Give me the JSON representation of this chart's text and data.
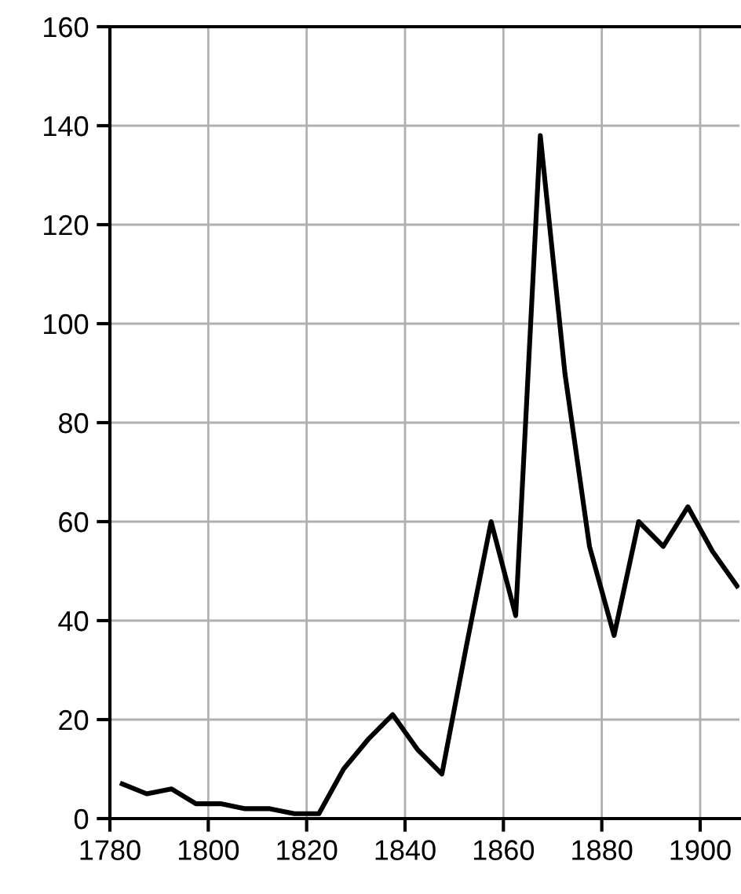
{
  "chart_data": {
    "type": "line",
    "x": [
      1782.5,
      1787.5,
      1792.5,
      1797.5,
      1802.5,
      1807.5,
      1812.5,
      1817.5,
      1822.5,
      1827.5,
      1832.5,
      1837.5,
      1842.5,
      1847.5,
      1852.5,
      1857.5,
      1862.5,
      1867.5,
      1872.5,
      1877.5,
      1882.5,
      1887.5,
      1892.5,
      1897.5,
      1902.5,
      1907.5
    ],
    "series": [
      {
        "color": "#000000",
        "values": [
          7,
          5,
          6,
          3,
          3,
          2,
          2,
          1,
          1,
          10,
          16,
          21,
          14,
          9,
          35,
          60,
          41,
          138,
          90,
          55,
          37,
          60,
          55,
          63,
          54,
          47
        ]
      }
    ],
    "xlim": [
      1780,
      1908
    ],
    "xticks": [
      1780,
      1800,
      1820,
      1840,
      1860,
      1880,
      1900
    ],
    "ylim": [
      0,
      160
    ],
    "yticks": [
      0,
      20,
      40,
      60,
      80,
      100,
      120,
      140,
      160
    ],
    "grid": true,
    "legend": false,
    "marker": "none",
    "line_style": "solid"
  }
}
